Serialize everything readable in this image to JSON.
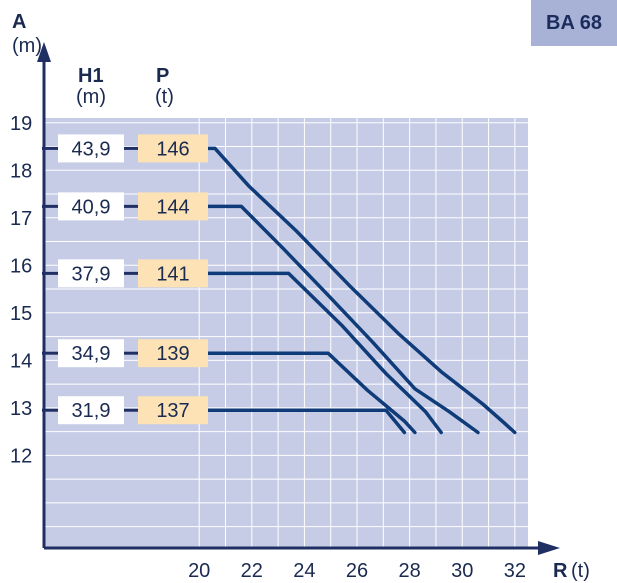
{
  "badge": "BA 68",
  "colors": {
    "plot_bg": "#c6cce6",
    "grid": "#ffffff",
    "axis": "#1f2f63",
    "curve": "#0f3b79",
    "h1_box": "#ffffff",
    "p_box": "#fce2b4",
    "badge_bg": "#a7b2d6"
  },
  "chart_data": {
    "type": "line",
    "ylabel": "A",
    "yunit": "(m)",
    "xlabel": "R",
    "xunit": "(t)",
    "column_headers": [
      {
        "label": "H1",
        "unit": "(m)"
      },
      {
        "label": "P",
        "unit": "(t)"
      }
    ],
    "xlim": [
      14.1,
      32.5
    ],
    "ylim": [
      10.05,
      19.1
    ],
    "xticks": [
      "20",
      "22",
      "24",
      "26",
      "28",
      "30",
      "32"
    ],
    "yticks": [
      "12",
      "13",
      "14",
      "15",
      "16",
      "17",
      "18",
      "19"
    ],
    "grid": true,
    "series": [
      {
        "h1": "43,9",
        "p": "146",
        "points": [
          [
            20,
            18.46
          ],
          [
            20.6,
            18.46
          ],
          [
            21.9,
            17.66
          ],
          [
            23.7,
            16.72
          ],
          [
            25.7,
            15.58
          ],
          [
            27.6,
            14.55
          ],
          [
            29.2,
            13.76
          ],
          [
            30.8,
            13.07
          ],
          [
            31.6,
            12.68
          ],
          [
            32,
            12.48
          ]
        ]
      },
      {
        "h1": "40,9",
        "p": "144",
        "points": [
          [
            20,
            17.24
          ],
          [
            21.6,
            17.24
          ],
          [
            23.2,
            16.35
          ],
          [
            24.9,
            15.37
          ],
          [
            26.6,
            14.38
          ],
          [
            28.2,
            13.4
          ],
          [
            29.5,
            12.92
          ],
          [
            30.6,
            12.48
          ]
        ]
      },
      {
        "h1": "37,9",
        "p": "141",
        "points": [
          [
            20,
            15.83
          ],
          [
            23.4,
            15.83
          ],
          [
            25.4,
            14.75
          ],
          [
            27.1,
            13.72
          ],
          [
            28.6,
            12.92
          ],
          [
            29.2,
            12.48
          ]
        ]
      },
      {
        "h1": "34,9",
        "p": "139",
        "points": [
          [
            20,
            14.15
          ],
          [
            24.9,
            14.15
          ],
          [
            26.4,
            13.37
          ],
          [
            27.8,
            12.72
          ],
          [
            28.2,
            12.48
          ]
        ]
      },
      {
        "h1": "31,9",
        "p": "137",
        "points": [
          [
            20,
            12.95
          ],
          [
            27.1,
            12.95
          ],
          [
            27.8,
            12.48
          ]
        ]
      }
    ]
  }
}
